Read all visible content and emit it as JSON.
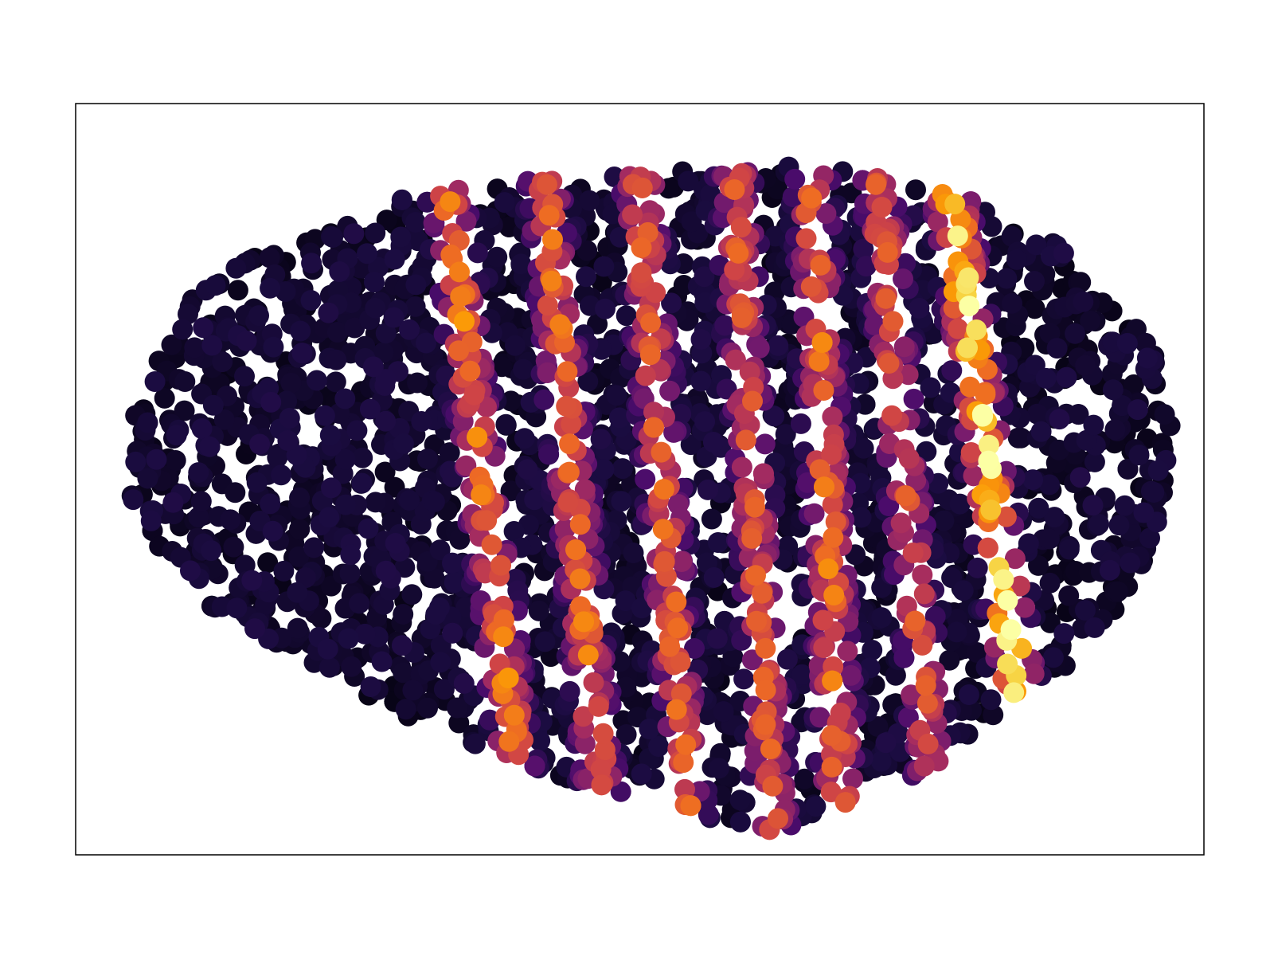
{
  "chart_data": {
    "type": "scatter",
    "title": "",
    "xlabel": "",
    "ylabel": "",
    "xlim": [
      0,
      1
    ],
    "ylim": [
      0,
      1
    ],
    "grid": false,
    "legend": "none",
    "ticks": "hidden",
    "colormap": [
      "#000004",
      "#1b0c41",
      "#4a0c6b",
      "#781c6d",
      "#a52c60",
      "#cf4446",
      "#ed6925",
      "#fb9b06",
      "#f7d13d",
      "#fcffa4"
    ],
    "embryo_outline": {
      "x": [
        0.04,
        0.06,
        0.1,
        0.18,
        0.28,
        0.4,
        0.52,
        0.63,
        0.73,
        0.82,
        0.88,
        0.92,
        0.96,
        0.975,
        0.965,
        0.93,
        0.86,
        0.74,
        0.62,
        0.5,
        0.4,
        0.3,
        0.2,
        0.12,
        0.07
      ],
      "y": [
        0.5,
        0.64,
        0.74,
        0.82,
        0.87,
        0.9,
        0.92,
        0.92,
        0.9,
        0.86,
        0.81,
        0.75,
        0.66,
        0.55,
        0.44,
        0.34,
        0.22,
        0.1,
        0.03,
        0.07,
        0.12,
        0.18,
        0.26,
        0.33,
        0.41
      ]
    },
    "stripes": [
      {
        "center_x": 0.36,
        "tilt": -0.08,
        "peak": 0.72
      },
      {
        "center_x": 0.44,
        "tilt": -0.06,
        "peak": 0.68
      },
      {
        "center_x": 0.52,
        "tilt": -0.05,
        "peak": 0.66
      },
      {
        "center_x": 0.6,
        "tilt": -0.04,
        "peak": 0.62
      },
      {
        "center_x": 0.665,
        "tilt": -0.03,
        "peak": 0.7
      },
      {
        "center_x": 0.735,
        "tilt": -0.06,
        "peak": 0.62
      },
      {
        "center_x": 0.81,
        "tilt": -0.09,
        "peak": 1.0
      }
    ],
    "point_count": 3400
  }
}
